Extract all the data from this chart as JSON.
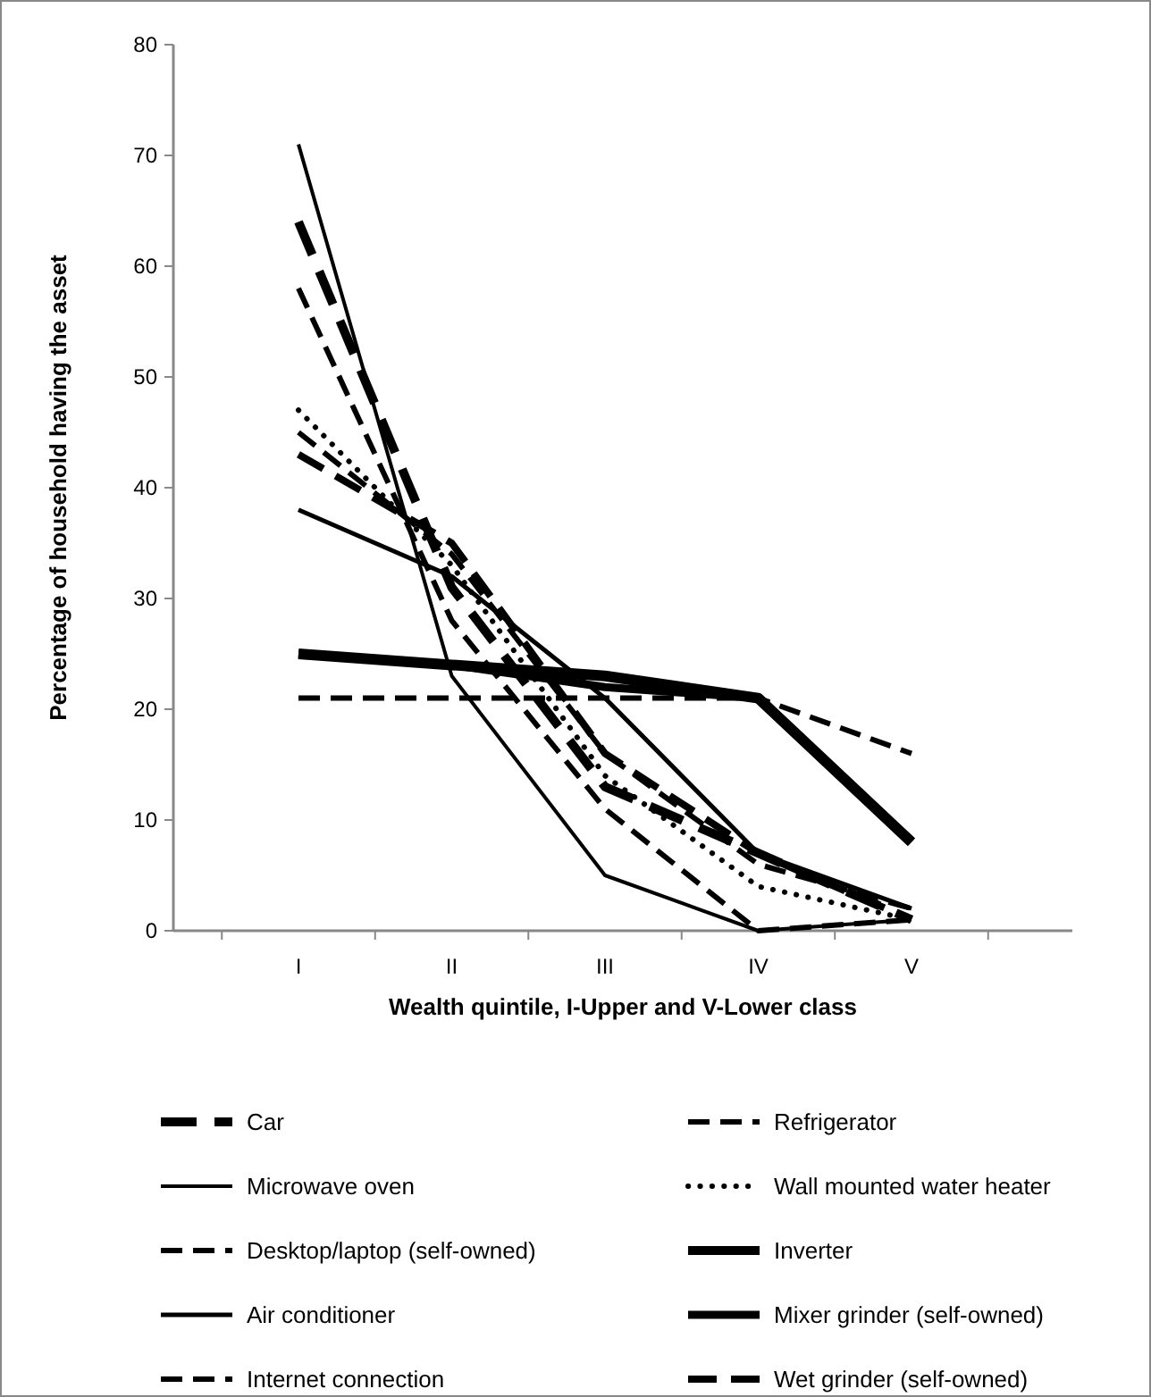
{
  "chart_data": {
    "type": "line",
    "xlabel": "Wealth quintile, I-Upper and V-Lower class",
    "ylabel": "Percentage of household having the asset",
    "categories": [
      "I",
      "II",
      "III",
      "IV",
      "V"
    ],
    "ylim": [
      0,
      80
    ],
    "yticks": [
      0,
      10,
      20,
      30,
      40,
      50,
      60,
      70,
      80
    ],
    "legend": "bottom",
    "marker": "none",
    "grid": false,
    "series": [
      {
        "name": "Car",
        "color": "#000000",
        "line_style": "dashed",
        "values": [
          64,
          31,
          13,
          7,
          1
        ]
      },
      {
        "name": "Microwave oven",
        "color": "#000000",
        "line_style": "solid",
        "values": [
          71,
          23,
          5,
          0,
          1
        ]
      },
      {
        "name": "Desktop/laptop (self-owned)",
        "color": "#000000",
        "line_style": "dashed",
        "values": [
          58,
          28,
          11,
          0,
          1
        ]
      },
      {
        "name": "Air conditioner",
        "color": "#000000",
        "line_style": "solid",
        "values": [
          38,
          32,
          21,
          7,
          2
        ]
      },
      {
        "name": "Internet connection",
        "color": "#000000",
        "line_style": "dashed",
        "values": [
          45,
          34,
          16,
          6,
          2
        ]
      },
      {
        "name": "Refrigerator",
        "color": "#000000",
        "line_style": "dashed",
        "values": [
          21,
          21,
          21,
          21,
          16
        ]
      },
      {
        "name": "Wall mounted water heater",
        "color": "#000000",
        "line_style": "dotted",
        "values": [
          47,
          33,
          14,
          4,
          1
        ]
      },
      {
        "name": "Inverter",
        "color": "#000000",
        "line_style": "solid",
        "values": [
          25,
          24,
          23,
          21,
          8
        ]
      },
      {
        "name": "Mixer grinder (self-owned)",
        "color": "#000000",
        "line_style": "solid",
        "values": [
          25,
          24,
          22,
          21,
          8
        ]
      },
      {
        "name": "Wet grinder (self-owned)",
        "color": "#000000",
        "line_style": "dashed",
        "values": [
          43,
          35,
          16,
          7,
          1
        ]
      }
    ]
  }
}
